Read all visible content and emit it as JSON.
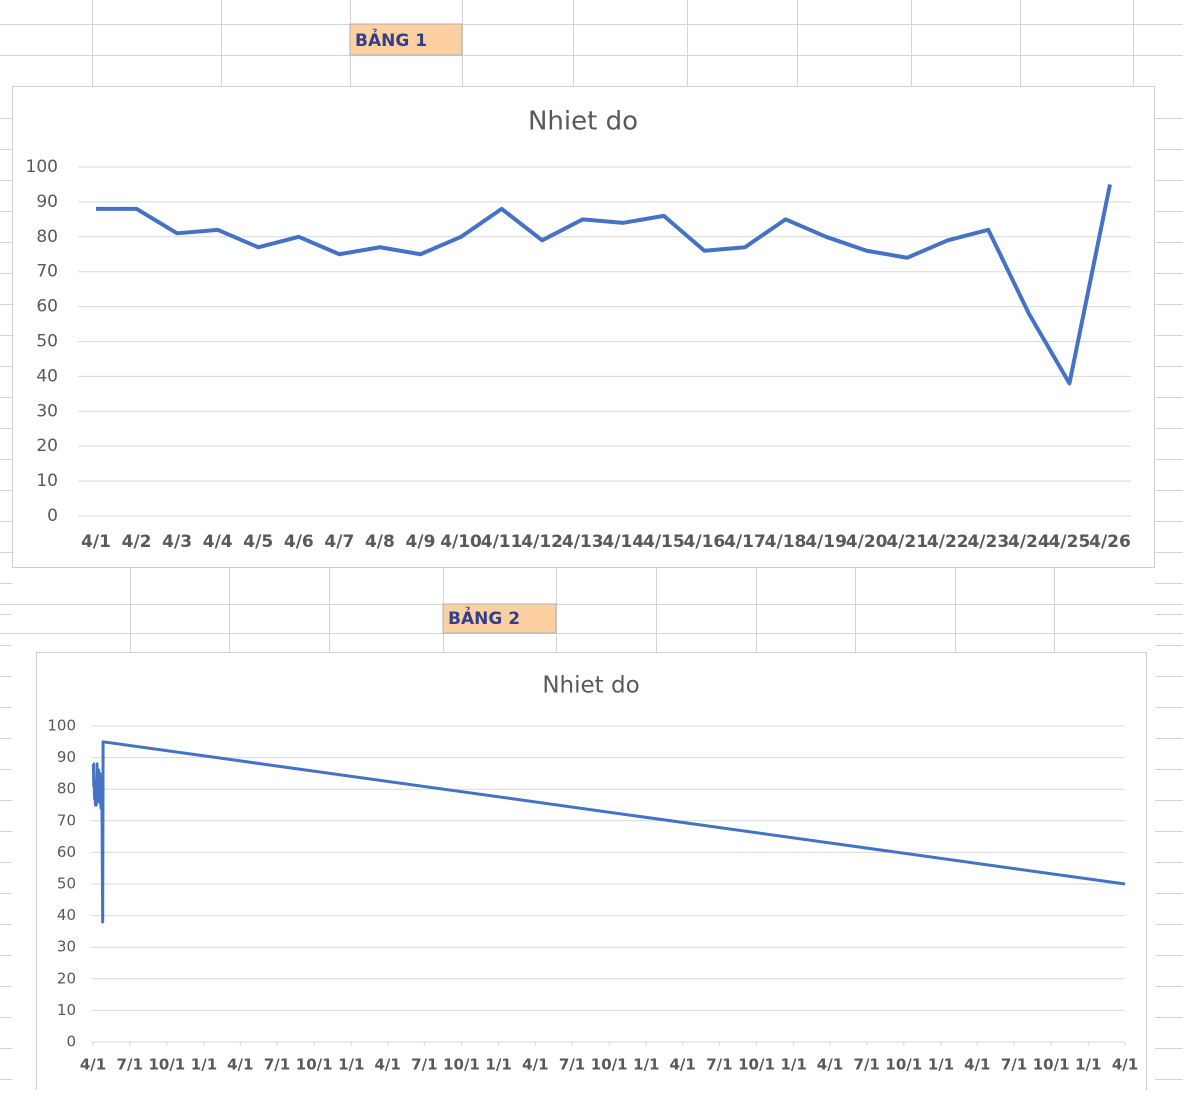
{
  "labels": [
    "BẢNG 1",
    "BẢNG 2"
  ],
  "chart_data": [
    {
      "type": "line",
      "title": "Nhiet do",
      "color": "#4472c4",
      "grid": true,
      "categories": [
        "4/1",
        "4/2",
        "4/3",
        "4/4",
        "4/5",
        "4/6",
        "4/7",
        "4/8",
        "4/9",
        "4/10",
        "4/11",
        "4/12",
        "4/13",
        "4/14",
        "4/15",
        "4/16",
        "4/17",
        "4/18",
        "4/19",
        "4/20",
        "4/21",
        "4/22",
        "4/23",
        "4/24",
        "4/25",
        "4/26"
      ],
      "values": [
        88,
        88,
        81,
        82,
        77,
        80,
        75,
        77,
        75,
        80,
        88,
        79,
        85,
        84,
        86,
        76,
        77,
        85,
        80,
        76,
        74,
        79,
        82,
        58,
        38,
        95
      ],
      "ylim": [
        0,
        100
      ],
      "yticks": [
        0,
        10,
        20,
        30,
        40,
        50,
        60,
        70,
        80,
        90,
        100
      ]
    },
    {
      "type": "line",
      "title": "Nhiet do",
      "color": "#4472c4",
      "grid": true,
      "x": [
        0,
        1,
        2,
        3,
        4,
        5,
        6,
        7,
        8,
        9,
        10,
        11,
        12,
        13,
        14,
        15,
        16,
        17,
        18,
        19,
        20,
        21,
        22,
        23,
        24,
        25,
        2557
      ],
      "values": [
        88,
        88,
        81,
        82,
        77,
        80,
        75,
        77,
        75,
        80,
        88,
        79,
        85,
        84,
        86,
        76,
        77,
        85,
        80,
        76,
        74,
        79,
        82,
        58,
        38,
        95,
        50
      ],
      "xlim": [
        0,
        2557
      ],
      "xticks": [
        {
          "value": 0,
          "label": "4/1"
        },
        {
          "value": 91,
          "label": "7/1"
        },
        {
          "value": 183,
          "label": "10/1"
        },
        {
          "value": 275,
          "label": "1/1"
        },
        {
          "value": 365,
          "label": "4/1"
        },
        {
          "value": 456,
          "label": "7/1"
        },
        {
          "value": 548,
          "label": "10/1"
        },
        {
          "value": 640,
          "label": "1/1"
        },
        {
          "value": 730,
          "label": "4/1"
        },
        {
          "value": 821,
          "label": "7/1"
        },
        {
          "value": 913,
          "label": "10/1"
        },
        {
          "value": 1005,
          "label": "1/1"
        },
        {
          "value": 1096,
          "label": "4/1"
        },
        {
          "value": 1187,
          "label": "7/1"
        },
        {
          "value": 1279,
          "label": "10/1"
        },
        {
          "value": 1371,
          "label": "1/1"
        },
        {
          "value": 1461,
          "label": "4/1"
        },
        {
          "value": 1552,
          "label": "7/1"
        },
        {
          "value": 1644,
          "label": "10/1"
        },
        {
          "value": 1736,
          "label": "1/1"
        },
        {
          "value": 1826,
          "label": "4/1"
        },
        {
          "value": 1917,
          "label": "7/1"
        },
        {
          "value": 2009,
          "label": "10/1"
        },
        {
          "value": 2101,
          "label": "1/1"
        },
        {
          "value": 2191,
          "label": "4/1"
        },
        {
          "value": 2282,
          "label": "7/1"
        },
        {
          "value": 2374,
          "label": "10/1"
        },
        {
          "value": 2466,
          "label": "1/1"
        },
        {
          "value": 2557,
          "label": "4/1"
        }
      ],
      "ylim": [
        0,
        100
      ],
      "yticks": [
        0,
        10,
        20,
        30,
        40,
        50,
        60,
        70,
        80,
        90,
        100
      ]
    }
  ]
}
